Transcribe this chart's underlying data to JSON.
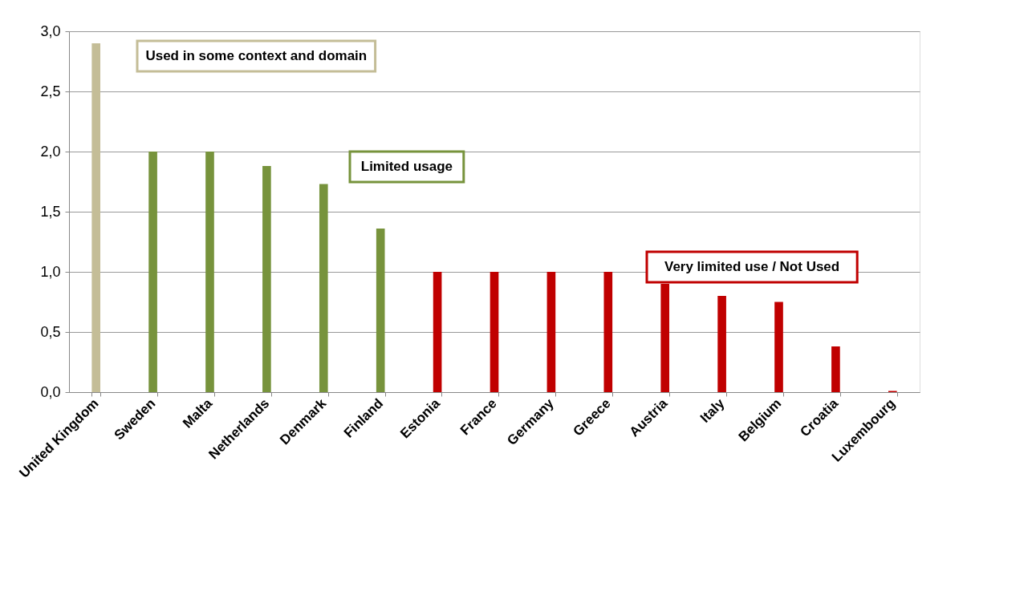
{
  "chart_data": {
    "type": "bar",
    "categories": [
      "United Kingdom",
      "Sweden",
      "Malta",
      "Netherlands",
      "Denmark",
      "Finland",
      "Estonia",
      "France",
      "Germany",
      "Greece",
      "Austria",
      "Italy",
      "Belgium",
      "Croatia",
      "Luxembourg"
    ],
    "series": [
      {
        "name": "Used in some context and domain",
        "color": "#c4bd97",
        "values": [
          2.9,
          null,
          null,
          null,
          null,
          null,
          null,
          null,
          null,
          null,
          null,
          null,
          null,
          null,
          null
        ]
      },
      {
        "name": "Limited usage",
        "color": "#77933c",
        "values": [
          null,
          2.0,
          2.0,
          1.88,
          1.73,
          1.36,
          null,
          null,
          null,
          null,
          null,
          null,
          null,
          null,
          null
        ]
      },
      {
        "name": "Very limited use / Not Used",
        "color": "#c00000",
        "values": [
          null,
          null,
          null,
          null,
          null,
          null,
          1.0,
          1.0,
          1.0,
          1.0,
          0.9,
          0.8,
          0.75,
          0.38,
          0.01
        ]
      }
    ],
    "ylim": [
      0,
      3
    ],
    "yticks": [
      {
        "value": 0,
        "label": "0,0"
      },
      {
        "value": 0.5,
        "label": "0,5"
      },
      {
        "value": 1,
        "label": "1,0"
      },
      {
        "value": 1.5,
        "label": "1,5"
      },
      {
        "value": 2,
        "label": "2,0"
      },
      {
        "value": 2.5,
        "label": "2,5"
      },
      {
        "value": 3,
        "label": "3,0"
      }
    ],
    "grid": "y"
  }
}
